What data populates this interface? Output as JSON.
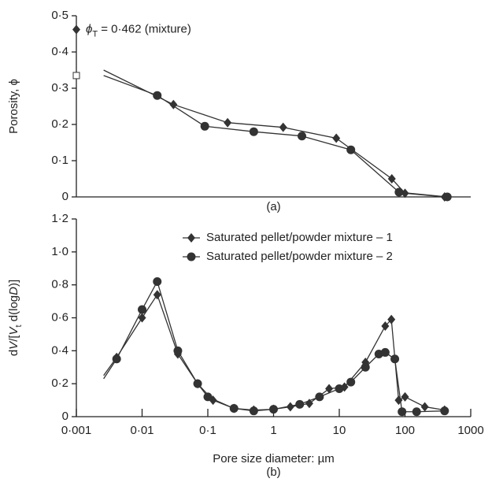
{
  "chart_data": [
    {
      "type": "line",
      "caption": "(a)",
      "ylabel": "Porosity, ϕ",
      "xscale": "log",
      "xlim": [
        0.001,
        1000
      ],
      "ylim": [
        0,
        0.5
      ],
      "yticks": [
        {
          "value": 0,
          "label": "0"
        },
        {
          "value": 0.1,
          "label": "0·1"
        },
        {
          "value": 0.2,
          "label": "0·2"
        },
        {
          "value": 0.3,
          "label": "0·3"
        },
        {
          "value": 0.4,
          "label": "0·4"
        },
        {
          "value": 0.5,
          "label": "0·5"
        }
      ],
      "annotation": {
        "symbol": "ϕ",
        "subscript": "T",
        "text": " = 0·462 (mixture)",
        "x": 0.001,
        "y": 0.462
      },
      "points": [
        {
          "x": 0.001,
          "y": 0.335,
          "marker": "square"
        }
      ],
      "series": [
        {
          "color": "#333333",
          "marker": "diamond",
          "x": [
            0.0026,
            0.03,
            0.2,
            1.4,
            9,
            63,
            100,
            400
          ],
          "values": [
            0.35,
            0.255,
            0.205,
            0.192,
            0.162,
            0.05,
            0.01,
            0
          ]
        },
        {
          "color": "#333333",
          "marker": "circle",
          "x": [
            0.0026,
            0.017,
            0.09,
            0.5,
            2.7,
            15,
            81,
            440
          ],
          "values": [
            0.335,
            0.28,
            0.195,
            0.18,
            0.168,
            0.13,
            0.013,
            0
          ]
        }
      ]
    },
    {
      "type": "line",
      "caption": "(b)",
      "xlabel": "Pore size diameter: µm",
      "ylabel_parts": [
        "d",
        "V",
        "/[",
        "V",
        "t",
        " d(log",
        "D",
        ")]"
      ],
      "xscale": "log",
      "xlim": [
        0.001,
        1000
      ],
      "ylim": [
        0,
        1.2
      ],
      "xticks": [
        {
          "value": 0.001,
          "label": "0·001"
        },
        {
          "value": 0.01,
          "label": "0·01"
        },
        {
          "value": 0.1,
          "label": "0·1"
        },
        1,
        10,
        100,
        1000
      ],
      "yticks": [
        {
          "value": 0,
          "label": "0"
        },
        {
          "value": 0.2,
          "label": "0·2"
        },
        {
          "value": 0.4,
          "label": "0·4"
        },
        {
          "value": 0.6,
          "label": "0·6"
        },
        {
          "value": 0.8,
          "label": "0·8"
        },
        {
          "value": 1,
          "label": "1·0"
        },
        {
          "value": 1.2,
          "label": "1·2"
        }
      ],
      "series": [
        {
          "name": "Saturated pellet/powder mixture – 1",
          "color": "#333333",
          "marker": "diamond",
          "x": [
            0.0026,
            0.0041,
            0.01,
            0.017,
            0.035,
            0.07,
            0.12,
            0.25,
            0.5,
            1,
            1.8,
            3.5,
            7,
            12,
            25,
            50,
            62,
            80,
            100,
            200,
            400
          ],
          "values": [
            0.25,
            0.36,
            0.6,
            0.74,
            0.38,
            0.2,
            0.1,
            0.05,
            0.04,
            0.045,
            0.06,
            0.08,
            0.17,
            0.18,
            0.33,
            0.55,
            0.59,
            0.1,
            0.12,
            0.06,
            0.04
          ]
        },
        {
          "name": "Saturated pellet/powder mixture – 2",
          "color": "#333333",
          "marker": "circle",
          "x": [
            0.0026,
            0.0041,
            0.01,
            0.017,
            0.035,
            0.07,
            0.1,
            0.25,
            0.5,
            1,
            2.5,
            5,
            10,
            15,
            25,
            40,
            50,
            70,
            90,
            150,
            400
          ],
          "values": [
            0.23,
            0.35,
            0.65,
            0.82,
            0.4,
            0.2,
            0.12,
            0.05,
            0.035,
            0.045,
            0.075,
            0.12,
            0.17,
            0.21,
            0.3,
            0.38,
            0.39,
            0.35,
            0.03,
            0.03,
            0.035
          ]
        }
      ]
    }
  ]
}
